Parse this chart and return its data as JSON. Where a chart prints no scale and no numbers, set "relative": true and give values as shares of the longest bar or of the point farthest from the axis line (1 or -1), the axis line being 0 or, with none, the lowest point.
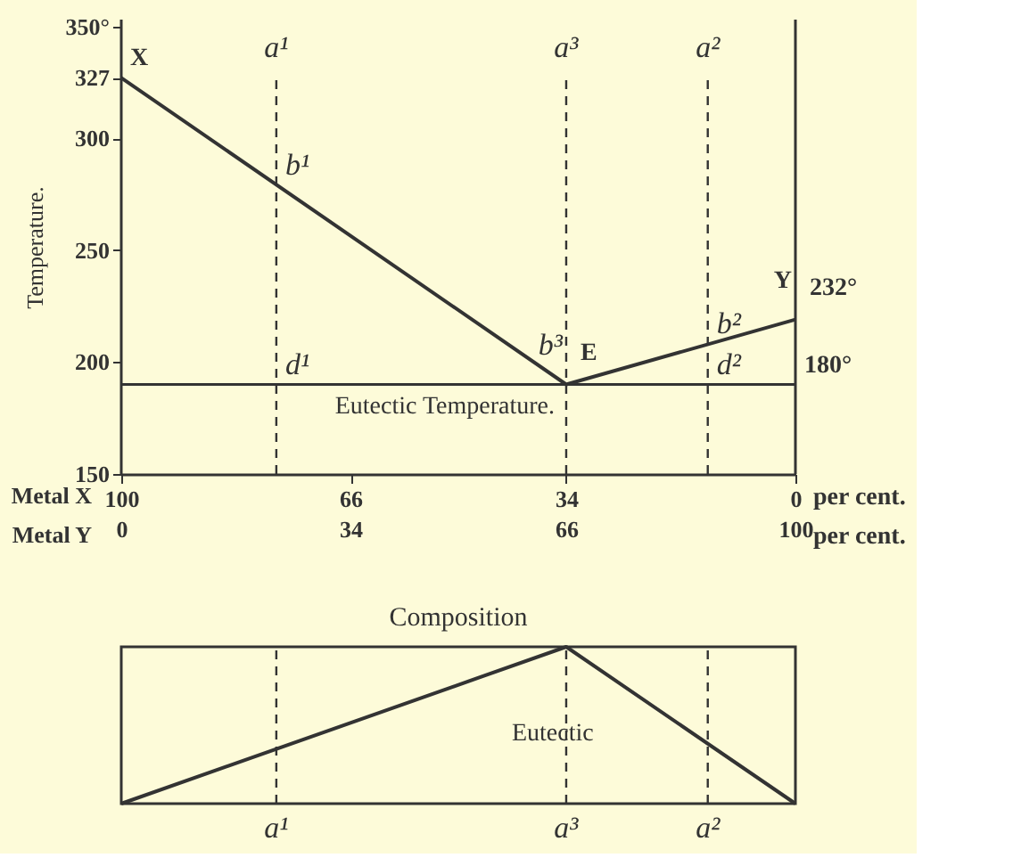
{
  "chart_data": [
    {
      "type": "line",
      "ylabel": "Temperature.",
      "xlabel": "Metal Y",
      "x2label": "Metal X",
      "xlim": [
        0,
        100
      ],
      "x2lim": [
        100,
        0
      ],
      "ylim": [
        150,
        353
      ],
      "xticks": [
        0,
        34,
        66,
        100
      ],
      "x2ticks": [
        100,
        66,
        34,
        0
      ],
      "yticks": [
        150,
        200,
        250,
        300,
        327,
        {
          "value": 350,
          "label": "350°"
        }
      ],
      "series": [
        {
          "color": "#333333",
          "x": [
            0,
            66,
            100
          ],
          "values": [
            327,
            190,
            219
          ]
        }
      ],
      "ref_lines": [
        {
          "axis": "x",
          "value": 23,
          "label": "a¹",
          "line_style": "dashed",
          "color": "#333333"
        },
        {
          "axis": "x",
          "value": 66,
          "label": "a³",
          "line_style": "dashed",
          "color": "#333333"
        },
        {
          "axis": "x",
          "value": 87,
          "label": "a²",
          "line_style": "dashed",
          "color": "#333333"
        },
        {
          "axis": "y",
          "value": 190,
          "label": "Eutectic Temperature.",
          "line_style": "solid",
          "color": "#333333"
        }
      ],
      "annotations": [
        {
          "text": "X",
          "x": 0,
          "y": 327
        },
        {
          "text": "b¹",
          "x": 23,
          "y": 279
        },
        {
          "text": "b³",
          "x": 66,
          "y": 190
        },
        {
          "text": "E",
          "x": 66,
          "y": 190
        },
        {
          "text": "b²",
          "x": 87,
          "y": 208
        },
        {
          "text": "Y",
          "x": 100,
          "y": 219
        },
        {
          "text": "232°",
          "x": 100,
          "y": 219
        },
        {
          "text": "180°",
          "x": 100,
          "y": 190
        },
        {
          "text": "d¹",
          "x": 23,
          "y": 190
        },
        {
          "text": "d²",
          "x": 87,
          "y": 190
        },
        "per cent.",
        "per cent."
      ],
      "grid": false,
      "marker": "none",
      "line_style": "solid"
    },
    {
      "type": "line",
      "title": "Composition",
      "relative": true,
      "xlim": [
        0,
        100
      ],
      "tick_labels": false,
      "series": [
        {
          "color": "#333333",
          "x": [
            0,
            66,
            100
          ],
          "values": [
            0,
            1,
            0
          ]
        }
      ],
      "ref_lines": [
        {
          "axis": "x",
          "value": 23,
          "label": "a¹",
          "line_style": "dashed",
          "color": "#333333"
        },
        {
          "axis": "x",
          "value": 66,
          "label": "a³",
          "line_style": "dashed",
          "color": "#333333"
        },
        {
          "axis": "x",
          "value": 87,
          "label": "a²",
          "line_style": "dashed",
          "color": "#333333"
        }
      ],
      "annotations": [
        "Eutectic"
      ],
      "grid": false,
      "marker": "none",
      "line_style": "solid"
    }
  ]
}
